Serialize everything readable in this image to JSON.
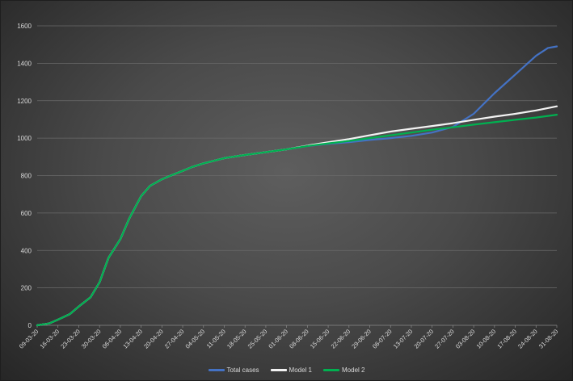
{
  "chart_data": {
    "type": "line",
    "title": "",
    "xlabel": "",
    "ylabel": "",
    "ylim": [
      0,
      1600
    ],
    "yticks": [
      0,
      200,
      400,
      600,
      800,
      1000,
      1200,
      1400,
      1600
    ],
    "grid": "horizontal",
    "legend_position": "bottom",
    "x_start": "09-03-20",
    "x_end": "31-08-20",
    "xtick_labels": [
      "09-03-20",
      "16-03-20",
      "23-03-20",
      "30-03-20",
      "06-04-20",
      "13-04-20",
      "20-04-20",
      "27-04-20",
      "04-05-20",
      "11-05-20",
      "18-05-20",
      "25-05-20",
      "01-06-20",
      "08-06-20",
      "15-06-20",
      "22-06-20",
      "29-06-20",
      "06-07-20",
      "13-07-20",
      "20-07-20",
      "27-07-20",
      "03-08-20",
      "10-08-20",
      "17-08-20",
      "24-08-20",
      "31-08-20"
    ],
    "series": [
      {
        "name": "Total cases",
        "color": "#4472c4",
        "points": [
          [
            "09-03-20",
            0
          ],
          [
            "13-03-20",
            10
          ],
          [
            "16-03-20",
            30
          ],
          [
            "20-03-20",
            60
          ],
          [
            "23-03-20",
            100
          ],
          [
            "27-03-20",
            150
          ],
          [
            "30-03-20",
            230
          ],
          [
            "02-04-20",
            360
          ],
          [
            "06-04-20",
            460
          ],
          [
            "09-04-20",
            570
          ],
          [
            "13-04-20",
            690
          ],
          [
            "16-04-20",
            745
          ],
          [
            "20-04-20",
            780
          ],
          [
            "23-04-20",
            800
          ],
          [
            "27-04-20",
            825
          ],
          [
            "30-04-20",
            845
          ],
          [
            "04-05-20",
            865
          ],
          [
            "11-05-20",
            893
          ],
          [
            "18-05-20",
            910
          ],
          [
            "25-05-20",
            925
          ],
          [
            "01-06-20",
            940
          ],
          [
            "08-06-20",
            958
          ],
          [
            "15-06-20",
            970
          ],
          [
            "22-06-20",
            978
          ],
          [
            "29-06-20",
            990
          ],
          [
            "06-07-20",
            1000
          ],
          [
            "13-07-20",
            1012
          ],
          [
            "20-07-20",
            1030
          ],
          [
            "27-07-20",
            1060
          ],
          [
            "03-08-20",
            1130
          ],
          [
            "10-08-20",
            1240
          ],
          [
            "17-08-20",
            1340
          ],
          [
            "24-08-20",
            1440
          ],
          [
            "28-08-20",
            1482
          ],
          [
            "31-08-20",
            1490
          ]
        ]
      },
      {
        "name": "Model 1",
        "color": "#f2f2f2",
        "points": [
          [
            "09-03-20",
            0
          ],
          [
            "13-03-20",
            10
          ],
          [
            "16-03-20",
            30
          ],
          [
            "20-03-20",
            60
          ],
          [
            "23-03-20",
            100
          ],
          [
            "27-03-20",
            150
          ],
          [
            "30-03-20",
            230
          ],
          [
            "02-04-20",
            360
          ],
          [
            "06-04-20",
            460
          ],
          [
            "09-04-20",
            570
          ],
          [
            "13-04-20",
            690
          ],
          [
            "16-04-20",
            745
          ],
          [
            "20-04-20",
            780
          ],
          [
            "23-04-20",
            800
          ],
          [
            "27-04-20",
            825
          ],
          [
            "30-04-20",
            845
          ],
          [
            "04-05-20",
            865
          ],
          [
            "11-05-20",
            893
          ],
          [
            "18-05-20",
            910
          ],
          [
            "25-05-20",
            925
          ],
          [
            "01-06-20",
            940
          ],
          [
            "08-06-20",
            960
          ],
          [
            "15-06-20",
            978
          ],
          [
            "22-06-20",
            995
          ],
          [
            "29-06-20",
            1015
          ],
          [
            "06-07-20",
            1035
          ],
          [
            "13-07-20",
            1050
          ],
          [
            "20-07-20",
            1065
          ],
          [
            "27-07-20",
            1080
          ],
          [
            "03-08-20",
            1098
          ],
          [
            "10-08-20",
            1115
          ],
          [
            "17-08-20",
            1130
          ],
          [
            "24-08-20",
            1148
          ],
          [
            "31-08-20",
            1170
          ]
        ]
      },
      {
        "name": "Model 2",
        "color": "#00b050",
        "points": [
          [
            "09-03-20",
            0
          ],
          [
            "13-03-20",
            10
          ],
          [
            "16-03-20",
            30
          ],
          [
            "20-03-20",
            60
          ],
          [
            "23-03-20",
            100
          ],
          [
            "27-03-20",
            150
          ],
          [
            "30-03-20",
            230
          ],
          [
            "02-04-20",
            360
          ],
          [
            "06-04-20",
            460
          ],
          [
            "09-04-20",
            570
          ],
          [
            "13-04-20",
            690
          ],
          [
            "16-04-20",
            745
          ],
          [
            "20-04-20",
            780
          ],
          [
            "23-04-20",
            800
          ],
          [
            "27-04-20",
            825
          ],
          [
            "30-04-20",
            845
          ],
          [
            "04-05-20",
            865
          ],
          [
            "11-05-20",
            893
          ],
          [
            "18-05-20",
            910
          ],
          [
            "25-05-20",
            925
          ],
          [
            "01-06-20",
            940
          ],
          [
            "08-06-20",
            958
          ],
          [
            "15-06-20",
            972
          ],
          [
            "22-06-20",
            985
          ],
          [
            "29-06-20",
            1000
          ],
          [
            "06-07-20",
            1015
          ],
          [
            "13-07-20",
            1030
          ],
          [
            "20-07-20",
            1045
          ],
          [
            "27-07-20",
            1058
          ],
          [
            "03-08-20",
            1072
          ],
          [
            "10-08-20",
            1085
          ],
          [
            "17-08-20",
            1098
          ],
          [
            "24-08-20",
            1110
          ],
          [
            "31-08-20",
            1125
          ]
        ]
      }
    ]
  }
}
